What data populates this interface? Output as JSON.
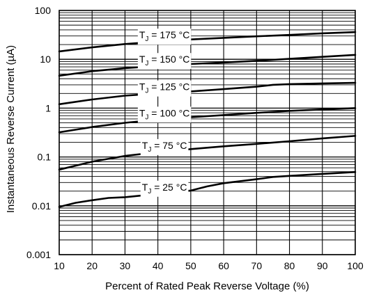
{
  "chart_data": {
    "type": "line",
    "title": "",
    "xlabel": "Percent of Rated Peak Reverse Voltage (%)",
    "ylabel": "Instantaneous Reverse Current (µA)",
    "x_scale": "linear",
    "y_scale": "log",
    "xlim": [
      10,
      100
    ],
    "ylim": [
      0.001,
      100
    ],
    "grid": true,
    "legend": "none",
    "x_ticks": [
      "10",
      "20",
      "30",
      "40",
      "50",
      "60",
      "70",
      "80",
      "90",
      "100"
    ],
    "y_ticks": [
      "0.001",
      "0.01",
      "0.1",
      "1",
      "10",
      "100"
    ],
    "line_color": "#000000",
    "grid_color": "#000000",
    "series": [
      {
        "label_main": "T",
        "label_sub": "J",
        "label_rest": " = 175 °C",
        "label_x": 42,
        "x": [
          10,
          20,
          30,
          40,
          50,
          60,
          70,
          80,
          90,
          100
        ],
        "y": [
          14.5,
          17.5,
          20.5,
          23.0,
          25.5,
          27.5,
          29.5,
          31.5,
          34.0,
          36.0
        ]
      },
      {
        "label_main": "T",
        "label_sub": "J",
        "label_rest": " = 150 °C",
        "label_x": 42,
        "x": [
          10,
          20,
          30,
          40,
          50,
          60,
          70,
          80,
          90,
          100
        ],
        "y": [
          4.6,
          5.7,
          6.6,
          7.3,
          8.0,
          8.6,
          9.3,
          10.2,
          11.2,
          12.3
        ]
      },
      {
        "label_main": "T",
        "label_sub": "J",
        "label_rest": " = 125 °C",
        "label_x": 42,
        "x": [
          10,
          20,
          30,
          40,
          50,
          60,
          70,
          75,
          80,
          90,
          100
        ],
        "y": [
          1.2,
          1.5,
          1.8,
          2.0,
          2.2,
          2.45,
          2.75,
          3.0,
          3.1,
          3.2,
          3.3
        ]
      },
      {
        "label_main": "T",
        "label_sub": "J",
        "label_rest": " = 100 °C",
        "label_x": 42,
        "x": [
          10,
          20,
          30,
          40,
          50,
          60,
          70,
          80,
          90,
          100
        ],
        "y": [
          0.32,
          0.41,
          0.5,
          0.58,
          0.65,
          0.72,
          0.8,
          0.88,
          0.94,
          1.0
        ]
      },
      {
        "label_main": "T",
        "label_sub": "J",
        "label_rest": " = 75 °C",
        "label_x": 42,
        "x": [
          10,
          20,
          30,
          40,
          50,
          60,
          70,
          80,
          90,
          100
        ],
        "y": [
          0.055,
          0.08,
          0.105,
          0.125,
          0.145,
          0.165,
          0.185,
          0.21,
          0.24,
          0.27
        ]
      },
      {
        "label_main": "T",
        "label_sub": "J",
        "label_rest": " = 25 °C",
        "label_x": 42,
        "x": [
          10,
          15,
          20,
          25,
          30,
          40,
          50,
          55,
          60,
          70,
          75,
          80,
          90,
          100
        ],
        "y": [
          0.0095,
          0.0115,
          0.013,
          0.0145,
          0.015,
          0.0175,
          0.0205,
          0.025,
          0.029,
          0.035,
          0.039,
          0.041,
          0.045,
          0.049
        ]
      }
    ]
  }
}
